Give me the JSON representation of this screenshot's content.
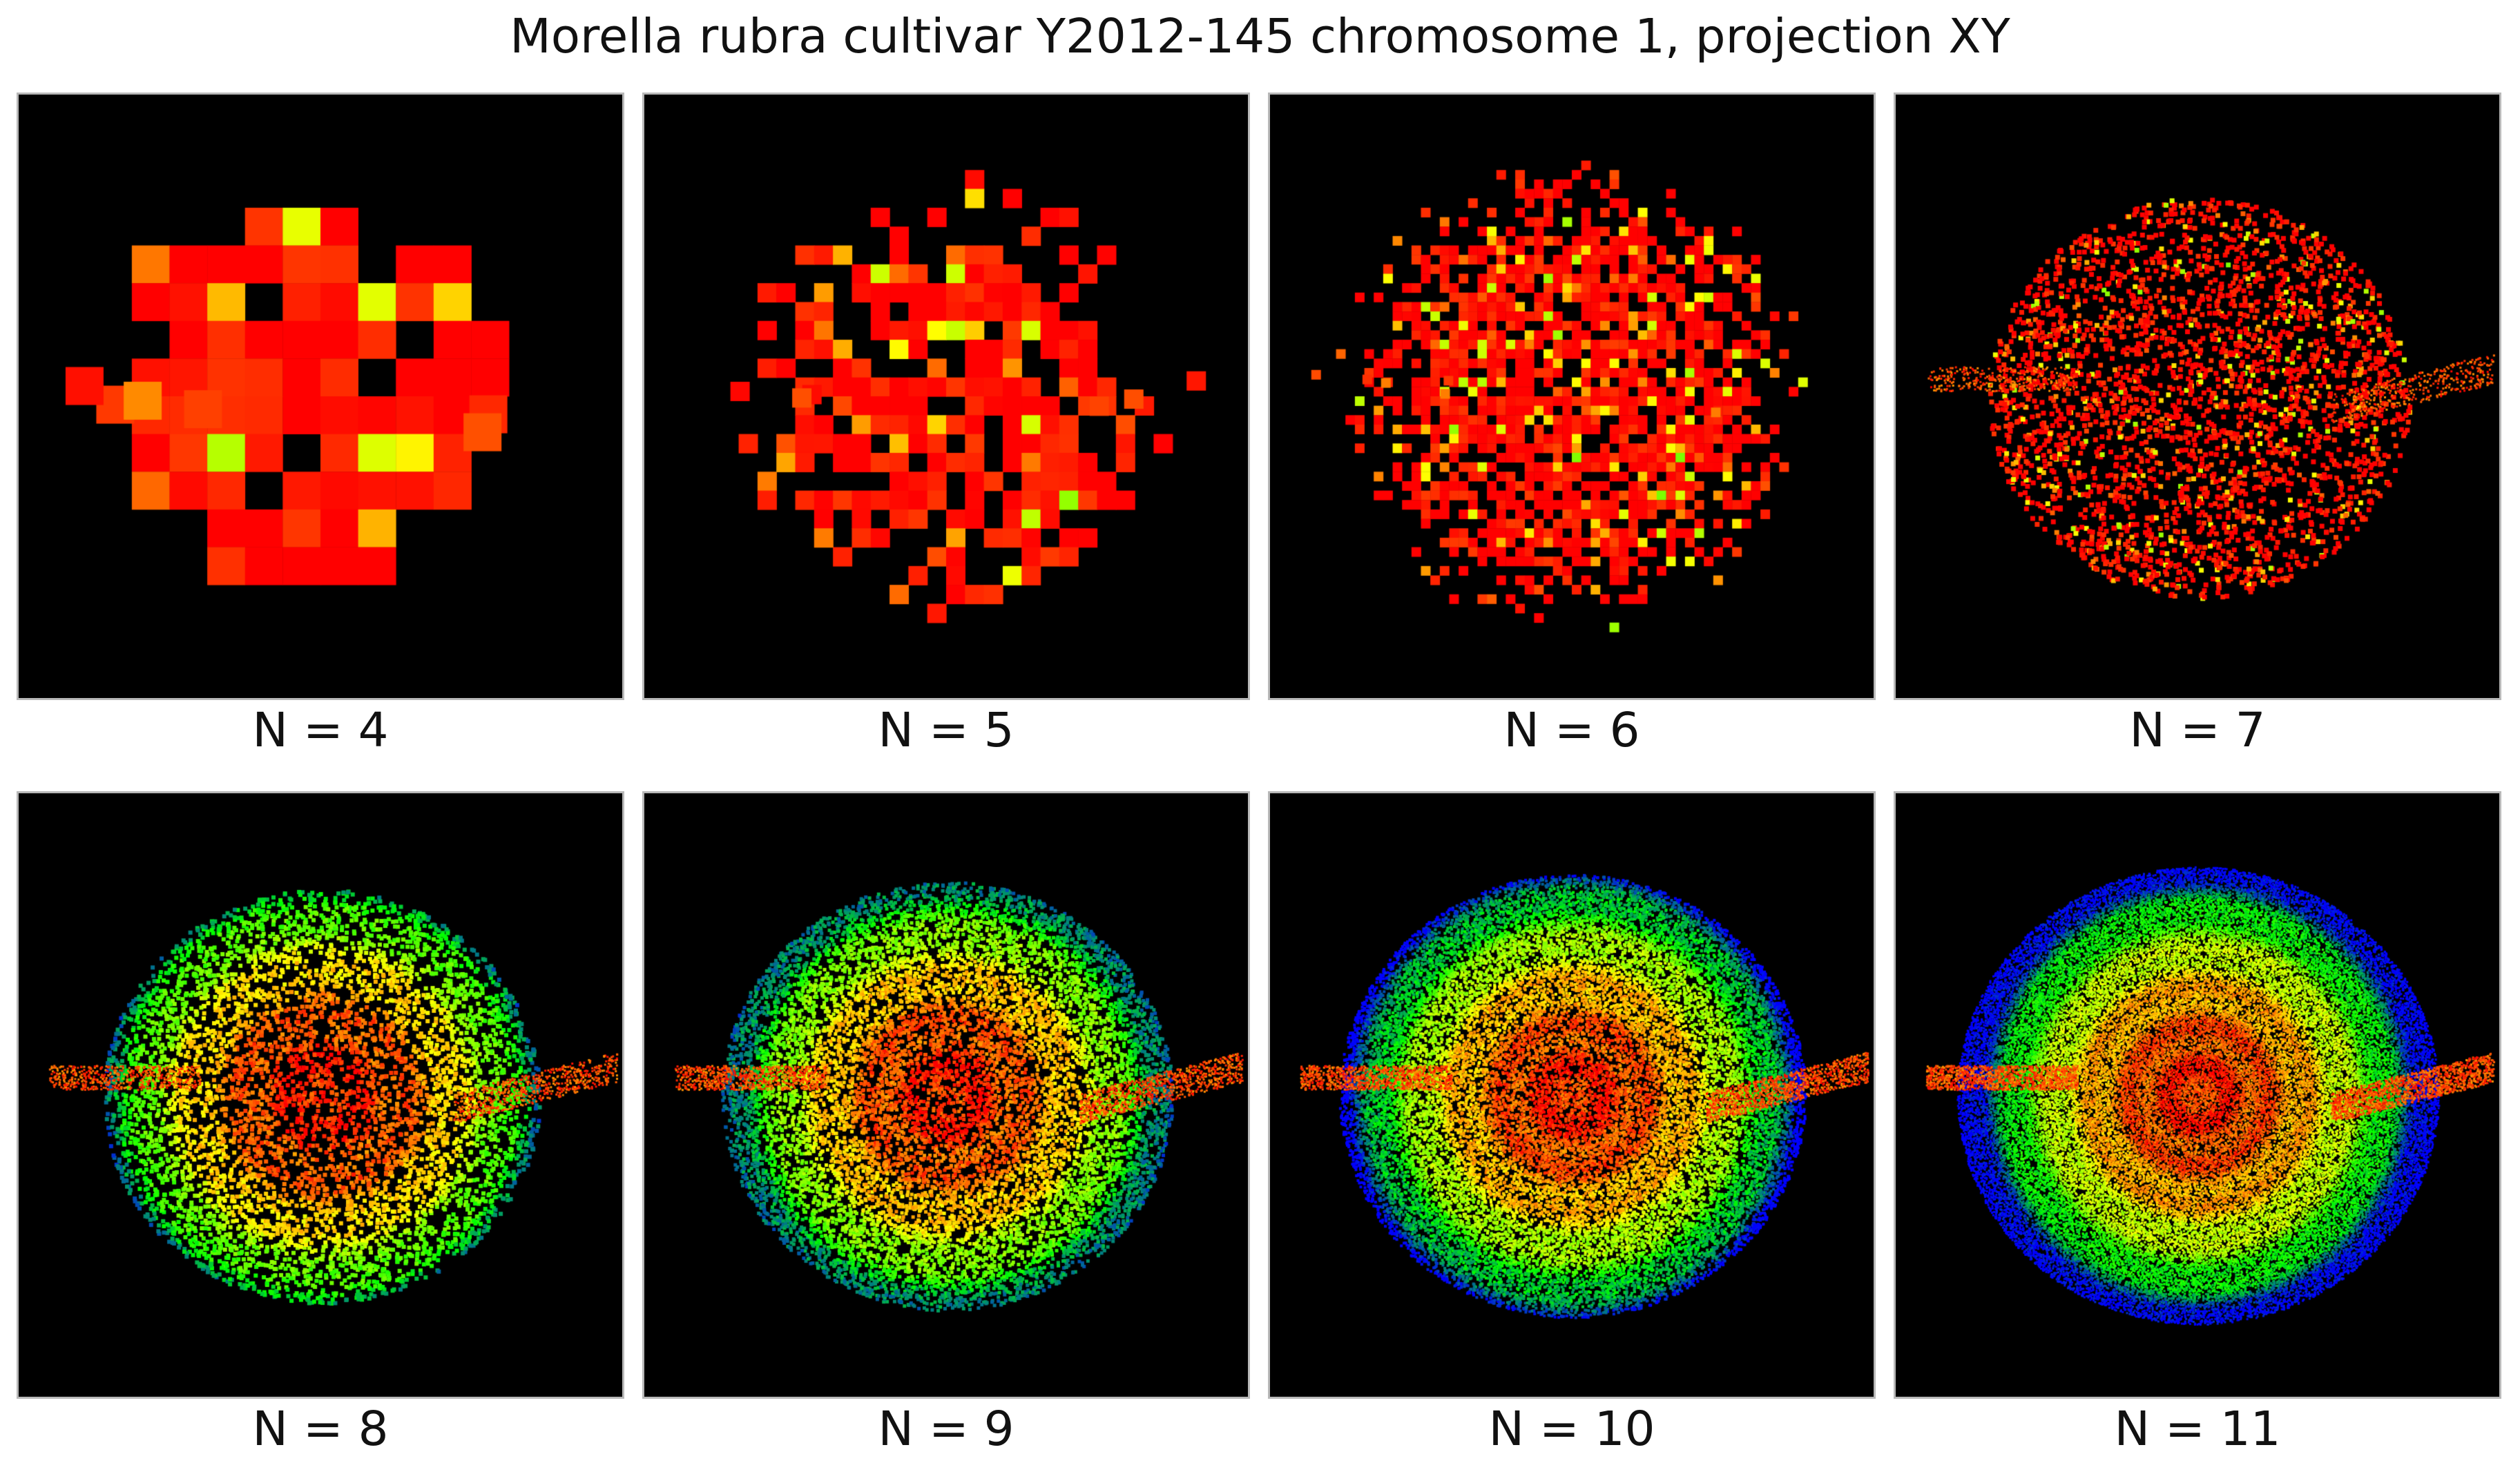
{
  "title": "Morella rubra cultivar Y2012-145 chromosome 1, projection XY",
  "panels": [
    {
      "label": "N = 4",
      "n": 4
    },
    {
      "label": "N = 5",
      "n": 5
    },
    {
      "label": "N = 6",
      "n": 6
    },
    {
      "label": "N = 7",
      "n": 7
    },
    {
      "label": "N = 8",
      "n": 8
    },
    {
      "label": "N = 9",
      "n": 9
    },
    {
      "label": "N = 10",
      "n": 10
    },
    {
      "label": "N = 11",
      "n": 11
    }
  ],
  "colors": {
    "background": "#000000",
    "scale": [
      "#0000ff",
      "#00ff00",
      "#ffff00",
      "#ff0000"
    ]
  }
}
